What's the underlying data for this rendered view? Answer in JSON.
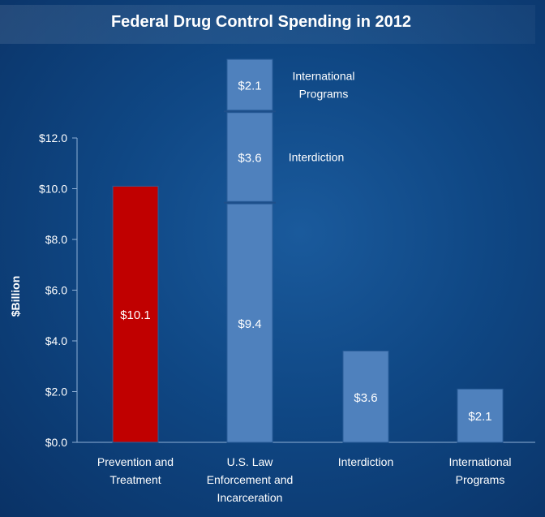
{
  "chart_data": {
    "type": "bar",
    "title": "Federal Drug Control Spending in 2012",
    "ylabel": "$Billion",
    "xlabel": "",
    "ylim": [
      0,
      12
    ],
    "yticks": [
      "$0.0",
      "$2.0",
      "$4.0",
      "$6.0",
      "$8.0",
      "$10.0",
      "$12.0"
    ],
    "ytick_values": [
      0,
      2,
      4,
      6,
      8,
      10,
      12
    ],
    "grid": false,
    "legend": "none",
    "categories": [
      [
        "Prevention and",
        "Treatment"
      ],
      [
        "U.S. Law",
        "Enforcement and",
        "Incarceration"
      ],
      [
        "Interdiction"
      ],
      [
        "International",
        "Programs"
      ]
    ],
    "bars": [
      {
        "segments": [
          {
            "value": 10.1,
            "label": "$10.1",
            "color": "#c00000"
          }
        ]
      },
      {
        "segments": [
          {
            "value": 9.4,
            "label": "$9.4",
            "color": "#4f81bd"
          },
          {
            "value": 3.6,
            "label": "$3.6",
            "color": "#4f81bd",
            "annotation": [
              "Interdiction"
            ]
          },
          {
            "value": 2.1,
            "label": "$2.1",
            "color": "#4f81bd",
            "annotation": [
              "International",
              "Programs"
            ]
          }
        ]
      },
      {
        "segments": [
          {
            "value": 3.6,
            "label": "$3.6",
            "color": "#4f81bd"
          }
        ]
      },
      {
        "segments": [
          {
            "value": 2.1,
            "label": "$2.1",
            "color": "#4f81bd"
          }
        ]
      }
    ]
  }
}
